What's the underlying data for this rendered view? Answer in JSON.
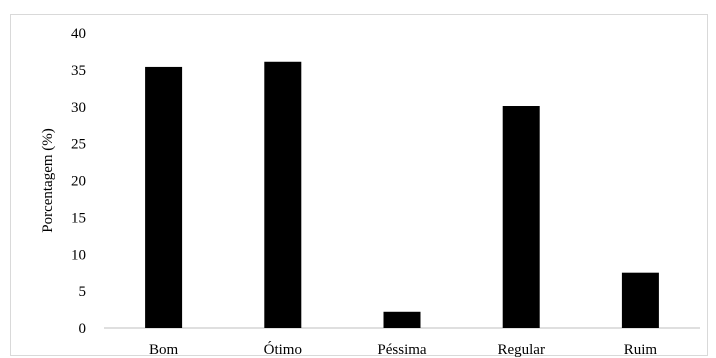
{
  "chart_data": {
    "type": "bar",
    "title": "",
    "xlabel": "",
    "ylabel": "Porcentagem (%)",
    "ylim": [
      0,
      40
    ],
    "yticks": [
      0,
      5,
      10,
      15,
      20,
      25,
      30,
      35,
      40
    ],
    "grid": false,
    "legend": "none",
    "categories": [
      "Bom",
      "Ótimo",
      "Péssima",
      "Regular",
      "Ruim"
    ],
    "values": [
      35.4,
      36.1,
      2.2,
      30.1,
      7.5
    ],
    "bar_color": "#000000",
    "axis_color": "#bfbfbf"
  }
}
